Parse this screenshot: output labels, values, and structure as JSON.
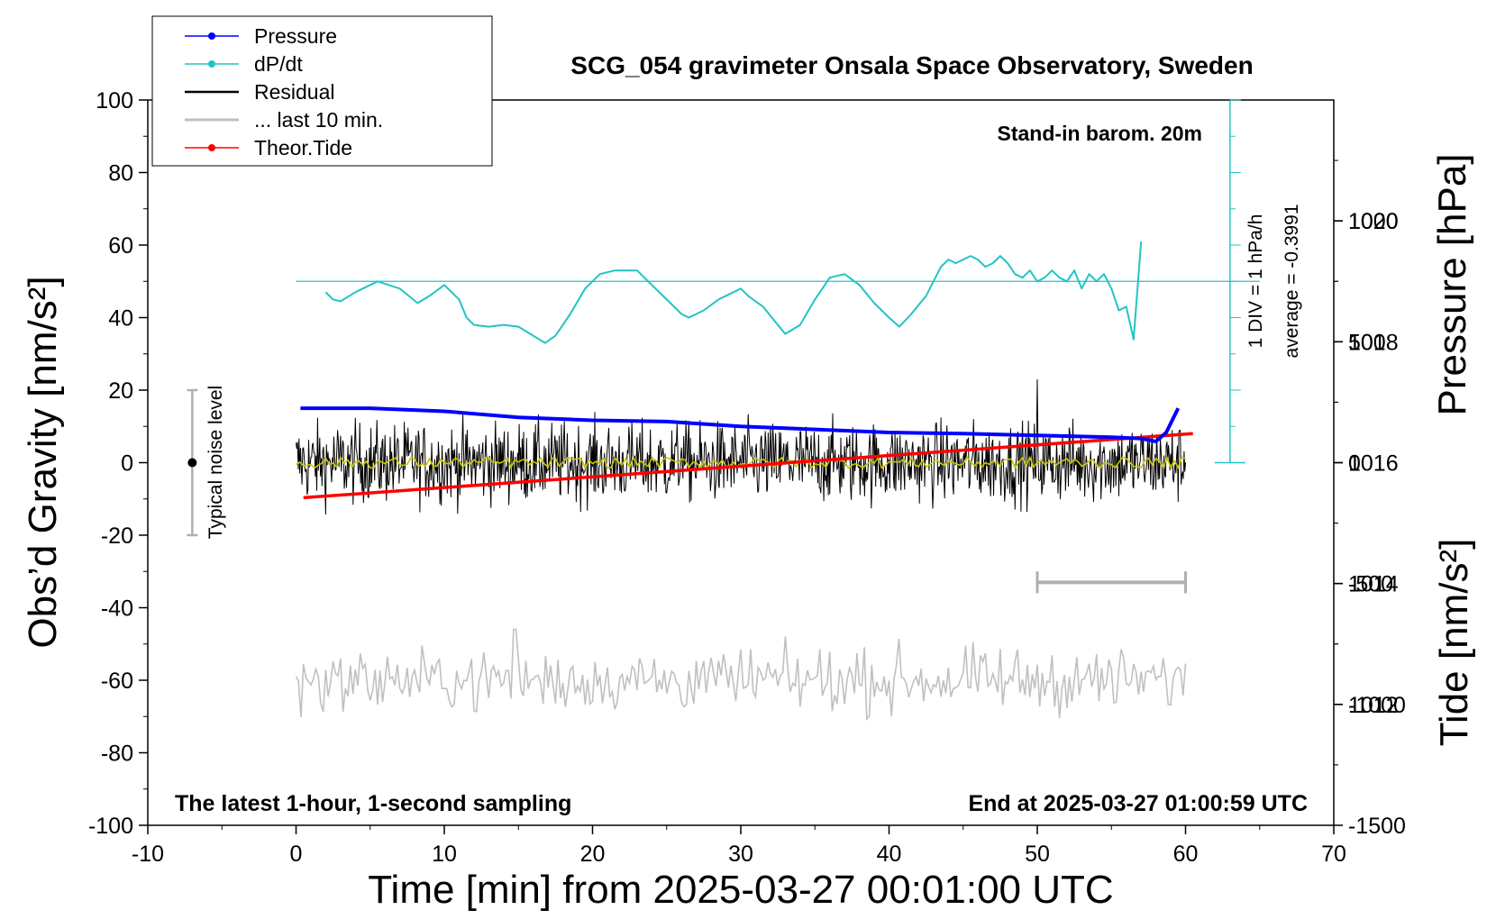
{
  "chart_data": {
    "type": "line",
    "title": "SCG_054 gravimeter Onsala Space Observatory, Sweden",
    "xlabel": "Time [min] from 2025-03-27 00:01:00 UTC",
    "ylabel_left": "Obs’d Gravity [nm/s²]",
    "ylabel_right_top": "Pressure [hPa]",
    "ylabel_right_bottom": "Tide [nm/s²]",
    "xlim": [
      -10,
      70
    ],
    "ylim": [
      -100,
      100
    ],
    "pressure_ylim": [
      1010,
      1022
    ],
    "tide_ylim": [
      -1500,
      1500
    ],
    "x_ticks": [
      "-10",
      "0",
      "10",
      "20",
      "30",
      "40",
      "50",
      "60",
      "70"
    ],
    "y_ticks": [
      "100",
      "80",
      "60",
      "40",
      "20",
      "0",
      "-20",
      "-40",
      "-60",
      "-80",
      "-100"
    ],
    "pressure_ticks": [
      "1020",
      "1018",
      "1016",
      "1014",
      "1012"
    ],
    "tide_ticks": [
      "1000",
      "500",
      "0",
      "-500",
      "-1000",
      "-1500"
    ],
    "annotations": {
      "barometer": "Stand-in barom. 20m",
      "sampling": "The latest 1-hour, 1-second sampling",
      "end_time": "End at 2025-03-27 01:00:59 UTC",
      "noise": "Typical noise level",
      "dpdt_scale": "1 DIV = 1 hPa/h",
      "dpdt_average": "average = -0.3991"
    },
    "legend": {
      "position": "top-left",
      "entries": [
        {
          "label": "Pressure",
          "color": "#0000ff",
          "marker": true
        },
        {
          "label": "dP/dt",
          "color": "#22c4c4",
          "marker": true
        },
        {
          "label": "Residual",
          "color": "#000000",
          "marker": false
        },
        {
          "label": "... last 10 min.",
          "color": "#c0c0c0",
          "marker": false
        },
        {
          "label": "Theor.Tide",
          "color": "#ff0000",
          "marker": true
        }
      ]
    },
    "series": [
      {
        "name": "Pressure",
        "units": "hPa",
        "color": "#0000ff",
        "x": [
          0.3,
          5,
          10,
          15,
          20,
          25,
          30,
          35,
          40,
          45,
          50,
          55,
          57,
          58,
          58.7,
          59.5
        ],
        "y": [
          1016.9,
          1016.9,
          1016.85,
          1016.75,
          1016.7,
          1016.68,
          1016.6,
          1016.55,
          1016.5,
          1016.48,
          1016.45,
          1016.42,
          1016.4,
          1016.35,
          1016.5,
          1016.9
        ]
      },
      {
        "name": "dP/dt",
        "units": "nm/s² on left axis scale",
        "color": "#22c4c4",
        "x": [
          2,
          2.5,
          3,
          4,
          5.5,
          7,
          8.2,
          9,
          10,
          11,
          11.5,
          12,
          13,
          14,
          15,
          16,
          16.8,
          17.5,
          18.5,
          19.5,
          20.5,
          21.5,
          23,
          24,
          25,
          26,
          26.5,
          27.5,
          28.5,
          29.5,
          30,
          30.5,
          31.5,
          32.5,
          33,
          34,
          35,
          36,
          37,
          38,
          39,
          40,
          40.7,
          41.5,
          42.5,
          43.5,
          44,
          44.5,
          45,
          45.5,
          46,
          46.5,
          47,
          47.5,
          48,
          48.5,
          49,
          49.5,
          50,
          50.5,
          51,
          51.5,
          52,
          52.5,
          53,
          53.5,
          54,
          54.5,
          55,
          55.5,
          56,
          56.5,
          57
        ],
        "y": [
          47,
          45,
          44.5,
          47,
          50,
          48,
          44,
          46,
          49,
          45,
          40,
          38,
          37.5,
          38,
          37.5,
          35,
          33,
          35,
          41,
          48,
          52,
          53,
          53,
          49,
          45,
          41,
          40,
          42,
          45,
          47,
          48,
          46,
          43,
          38,
          35.5,
          38,
          45,
          51,
          52,
          49,
          44,
          40,
          37.5,
          41,
          46,
          54,
          56,
          55,
          56,
          57,
          56,
          54,
          55,
          57,
          55,
          52,
          51,
          53,
          50,
          51,
          53,
          51,
          50,
          53,
          48,
          52,
          50,
          52,
          48,
          42,
          43,
          34,
          61
        ]
      },
      {
        "name": "Residual",
        "units": "nm/s²",
        "color": "#000000",
        "x": [
          0,
          60
        ],
        "y": [
          0,
          0
        ],
        "spread": 10
      },
      {
        "name": "... last 10 min.",
        "units": "nm/s²",
        "color": "#c0c0c0",
        "x": [
          0,
          60
        ],
        "y": [
          -60,
          -60
        ],
        "spread": 7
      },
      {
        "name": "Theor.Tide",
        "units": "nm/s²",
        "color": "#ff0000",
        "x": [
          0.5,
          60.5
        ],
        "y": [
          -145,
          120
        ]
      }
    ]
  }
}
